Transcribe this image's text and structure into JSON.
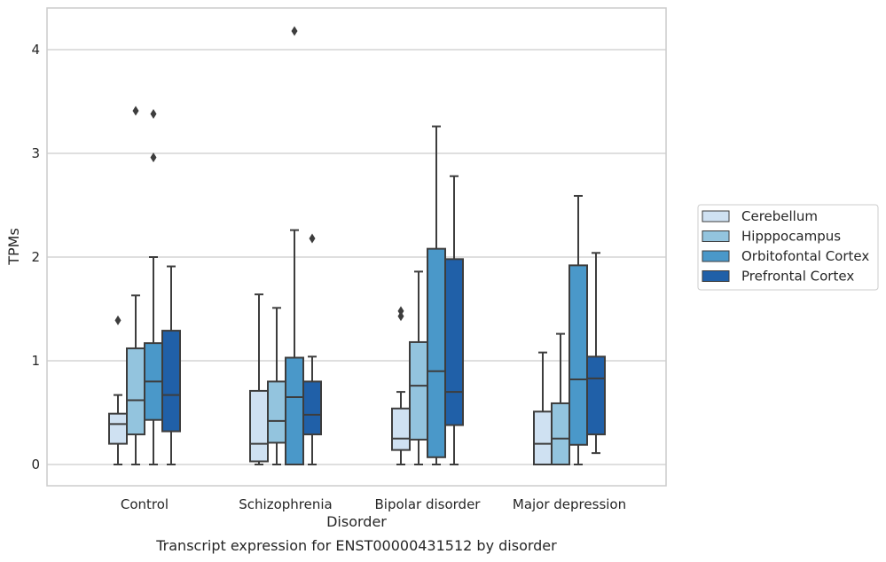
{
  "chart_data": {
    "type": "box",
    "title": "Transcript expression for ENST00000431512 by disorder",
    "xlabel": "Disorder",
    "ylabel": "TPMs",
    "ylim": [
      -0.2,
      4.4
    ],
    "yticks": [
      0,
      1,
      2,
      3,
      4
    ],
    "grid": "horizontal",
    "legend_position": "right",
    "categories": [
      "Control",
      "Schizophrenia",
      "Bipolar disorder",
      "Major depression"
    ],
    "series": [
      {
        "name": "Cerebellum",
        "color": "#cfe1f2",
        "boxes": [
          {
            "whisker_low": 0.0,
            "q1": 0.2,
            "median": 0.39,
            "q3": 0.49,
            "whisker_high": 0.67,
            "outliers": [
              1.39
            ]
          },
          {
            "whisker_low": 0.0,
            "q1": 0.03,
            "median": 0.2,
            "q3": 0.71,
            "whisker_high": 1.64,
            "outliers": []
          },
          {
            "whisker_low": 0.0,
            "q1": 0.14,
            "median": 0.25,
            "q3": 0.54,
            "whisker_high": 0.7,
            "outliers": [
              1.43,
              1.48
            ]
          },
          {
            "whisker_low": 0.0,
            "q1": 0.0,
            "median": 0.2,
            "q3": 0.51,
            "whisker_high": 1.08,
            "outliers": []
          }
        ]
      },
      {
        "name": "Hipppocampus",
        "color": "#93c4de",
        "boxes": [
          {
            "whisker_low": 0.0,
            "q1": 0.29,
            "median": 0.62,
            "q3": 1.12,
            "whisker_high": 1.63,
            "outliers": [
              3.41
            ]
          },
          {
            "whisker_low": 0.0,
            "q1": 0.21,
            "median": 0.42,
            "q3": 0.8,
            "whisker_high": 1.51,
            "outliers": []
          },
          {
            "whisker_low": 0.0,
            "q1": 0.24,
            "median": 0.76,
            "q3": 1.18,
            "whisker_high": 1.86,
            "outliers": []
          },
          {
            "whisker_low": 0.0,
            "q1": 0.0,
            "median": 0.25,
            "q3": 0.59,
            "whisker_high": 1.26,
            "outliers": []
          }
        ]
      },
      {
        "name": "Orbitofontal Cortex",
        "color": "#4a98c9",
        "boxes": [
          {
            "whisker_low": 0.0,
            "q1": 0.43,
            "median": 0.8,
            "q3": 1.17,
            "whisker_high": 2.0,
            "outliers": [
              2.96,
              3.38
            ]
          },
          {
            "whisker_low": 0.0,
            "q1": 0.0,
            "median": 0.65,
            "q3": 1.03,
            "whisker_high": 2.26,
            "outliers": [
              4.18
            ]
          },
          {
            "whisker_low": 0.0,
            "q1": 0.07,
            "median": 0.9,
            "q3": 2.08,
            "whisker_high": 3.26,
            "outliers": []
          },
          {
            "whisker_low": 0.0,
            "q1": 0.19,
            "median": 0.82,
            "q3": 1.92,
            "whisker_high": 2.59,
            "outliers": []
          }
        ]
      },
      {
        "name": "Prefrontal Cortex",
        "color": "#2060a8",
        "boxes": [
          {
            "whisker_low": 0.0,
            "q1": 0.32,
            "median": 0.67,
            "q3": 1.29,
            "whisker_high": 1.91,
            "outliers": []
          },
          {
            "whisker_low": 0.0,
            "q1": 0.29,
            "median": 0.48,
            "q3": 0.8,
            "whisker_high": 1.04,
            "outliers": [
              2.18
            ]
          },
          {
            "whisker_low": 0.0,
            "q1": 0.38,
            "median": 0.7,
            "q3": 1.98,
            "whisker_high": 2.78,
            "outliers": []
          },
          {
            "whisker_low": 0.11,
            "q1": 0.29,
            "median": 0.83,
            "q3": 1.04,
            "whisker_high": 2.04,
            "outliers": []
          }
        ]
      }
    ]
  }
}
